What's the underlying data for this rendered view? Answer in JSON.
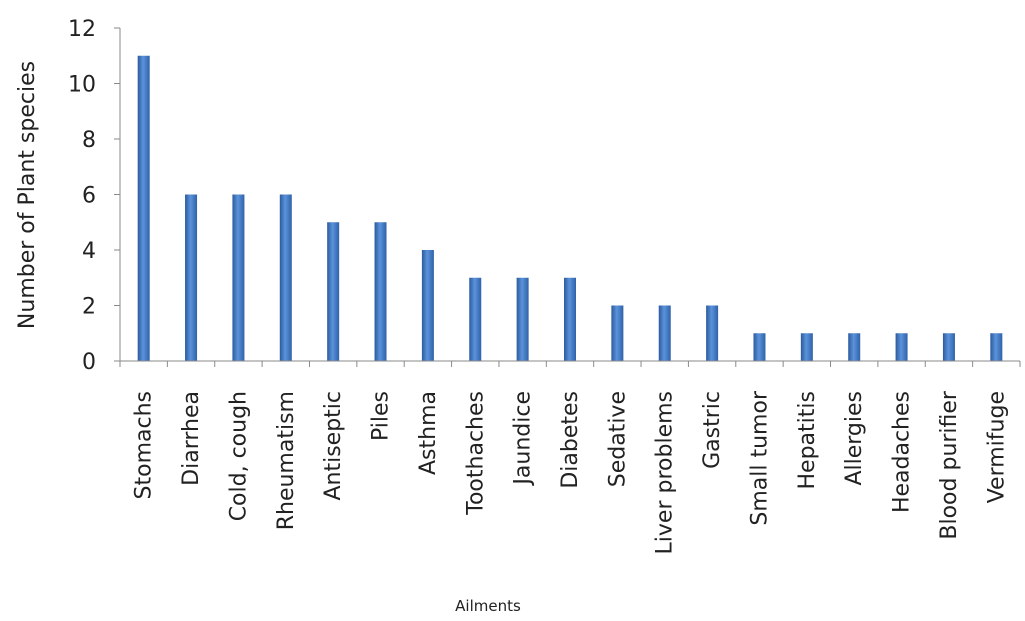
{
  "chart_data": {
    "type": "bar",
    "title": "",
    "xlabel": "Ailments",
    "ylabel": "Number of Plant species",
    "ylim": [
      0,
      12
    ],
    "yticks": [
      0,
      2,
      4,
      6,
      8,
      10,
      12
    ],
    "grid": false,
    "legend": "none",
    "bar_color": "#3f73bd",
    "categories": [
      "Stomachs",
      "Diarrhea",
      "Cold, cough",
      "Rheumatism",
      "Antiseptic",
      "Piles",
      "Asthma",
      "Toothaches",
      "Jaundice",
      "Diabetes",
      "Sedative",
      "Liver problems",
      "Gastric",
      "Small tumor",
      "Hepatitis",
      "Allergies",
      "Headaches",
      "Blood purifier",
      "Vermifuge"
    ],
    "values": [
      11,
      6,
      6,
      6,
      5,
      5,
      4,
      3,
      3,
      3,
      2,
      2,
      2,
      1,
      1,
      1,
      1,
      1,
      1
    ]
  }
}
